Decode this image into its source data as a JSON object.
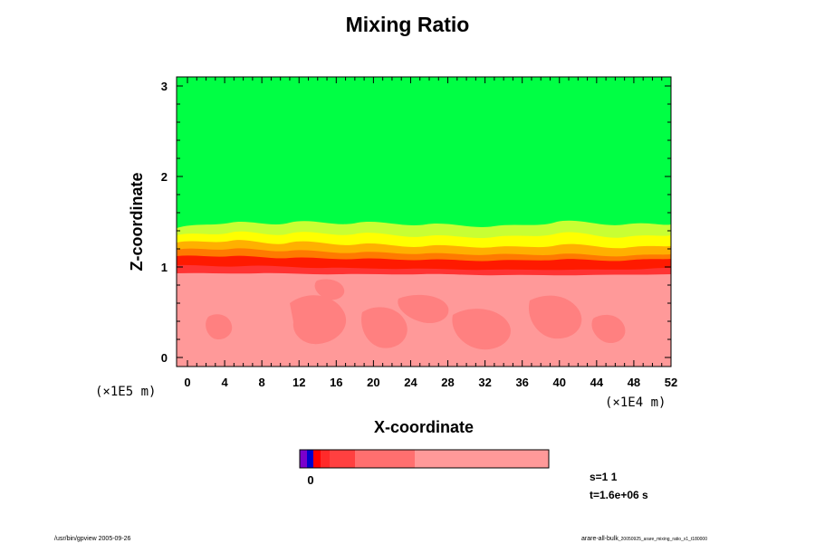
{
  "chart_data": {
    "type": "heatmap",
    "title": "Mixing Ratio",
    "xlabel": "X-coordinate",
    "ylabel": "Z-coordinate",
    "x_ticks": [
      "0",
      "4",
      "8",
      "12",
      "16",
      "20",
      "24",
      "28",
      "32",
      "36",
      "40",
      "44",
      "48",
      "52"
    ],
    "y_ticks": [
      "0",
      "1",
      "2",
      "3"
    ],
    "xlim": [
      0,
      52
    ],
    "ylim": [
      -0.1,
      3.1
    ],
    "x_unit": "(×1E4 m)",
    "y_unit": "(×1E5 m)",
    "layers": [
      {
        "name": "lower",
        "z_range": [
          -0.1,
          0.95
        ],
        "color": "#ff9999"
      },
      {
        "name": "interface",
        "z_range": [
          0.95,
          1.3
        ],
        "colors": [
          "#ff0000",
          "#ff4444",
          "#ff8c00",
          "#ffcc00",
          "#ffff00"
        ]
      },
      {
        "name": "upper",
        "z_range": [
          1.3,
          3.1
        ],
        "color": "#00ff44"
      }
    ],
    "colorbar": {
      "colors": [
        "#7a00cc",
        "#0000cc",
        "#ff0000",
        "#ff2a2a",
        "#ff4040",
        "#ff6f6f",
        "#ff9999"
      ],
      "tick_label": "0"
    }
  },
  "info": {
    "s_label": "s=1 1",
    "t_label": "t=1.6e+06 s"
  },
  "footer": {
    "left": "/usr/bin/gpview 2005-09-26",
    "right": "arare-all-bulk",
    "right_small": "_20050925_arare_mixing_ratio_x1_t180000"
  }
}
